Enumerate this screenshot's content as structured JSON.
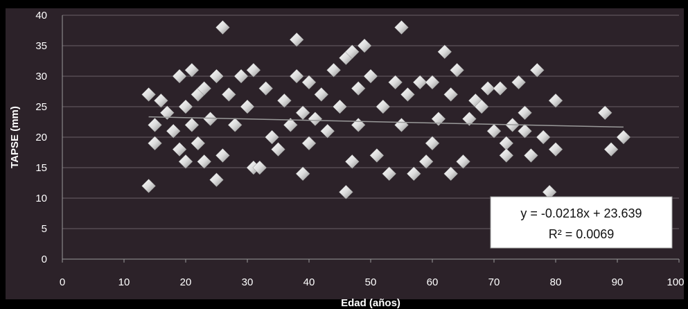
{
  "chart_data": {
    "type": "scatter",
    "title": "",
    "xlabel": "Edad (años)",
    "ylabel": "TAPSE (mm)",
    "xlim": [
      0,
      100
    ],
    "ylim": [
      0,
      40
    ],
    "xticks": [
      "0",
      "10",
      "20",
      "30",
      "40",
      "50",
      "60",
      "70",
      "80",
      "90",
      "100"
    ],
    "yticks": [
      "0",
      "5",
      "10",
      "15",
      "20",
      "25",
      "30",
      "35",
      "40"
    ],
    "grid": "horizontal",
    "marker": "diamond",
    "colors": {
      "background": "#000000",
      "plot_area": "#2c2229",
      "gridline": "#6a6068",
      "marker": "#e6e6e6",
      "trendline": "#9a9a9a",
      "label_box": "#ffffff"
    },
    "trendline": {
      "slope": -0.0218,
      "intercept": 23.639,
      "x_range": [
        14,
        91
      ]
    },
    "annotation": {
      "equation": "y = -0.0218x + 23.639",
      "r_squared": "R² = 0.0069"
    },
    "x": [
      14,
      14,
      15,
      15,
      16,
      17,
      18,
      19,
      19,
      20,
      20,
      21,
      21,
      22,
      22,
      23,
      23,
      24,
      25,
      25,
      26,
      26,
      27,
      28,
      29,
      30,
      31,
      31,
      32,
      33,
      34,
      35,
      36,
      37,
      38,
      38,
      39,
      39,
      40,
      40,
      41,
      42,
      43,
      44,
      45,
      46,
      46,
      47,
      47,
      48,
      48,
      49,
      50,
      51,
      52,
      53,
      54,
      55,
      55,
      56,
      57,
      58,
      59,
      60,
      60,
      61,
      62,
      63,
      63,
      64,
      65,
      66,
      67,
      68,
      69,
      70,
      71,
      72,
      72,
      73,
      74,
      75,
      75,
      76,
      77,
      78,
      79,
      80,
      80,
      88,
      89,
      91
    ],
    "y": [
      12,
      27,
      22,
      19,
      26,
      24,
      21,
      18,
      30,
      25,
      16,
      31,
      22,
      27,
      19,
      28,
      16,
      23,
      13,
      30,
      38,
      17,
      27,
      22,
      30,
      25,
      15,
      31,
      15,
      28,
      20,
      18,
      26,
      22,
      36,
      30,
      14,
      24,
      19,
      29,
      23,
      27,
      21,
      31,
      25,
      11,
      33,
      34,
      16,
      28,
      22,
      35,
      30,
      17,
      25,
      14,
      29,
      38,
      22,
      27,
      14,
      29,
      16,
      19,
      29,
      23,
      34,
      27,
      14,
      31,
      16,
      23,
      26,
      25,
      28,
      21,
      28,
      19,
      17,
      22,
      29,
      24,
      21,
      17,
      31,
      20,
      11,
      26,
      18,
      24,
      18,
      20
    ]
  }
}
